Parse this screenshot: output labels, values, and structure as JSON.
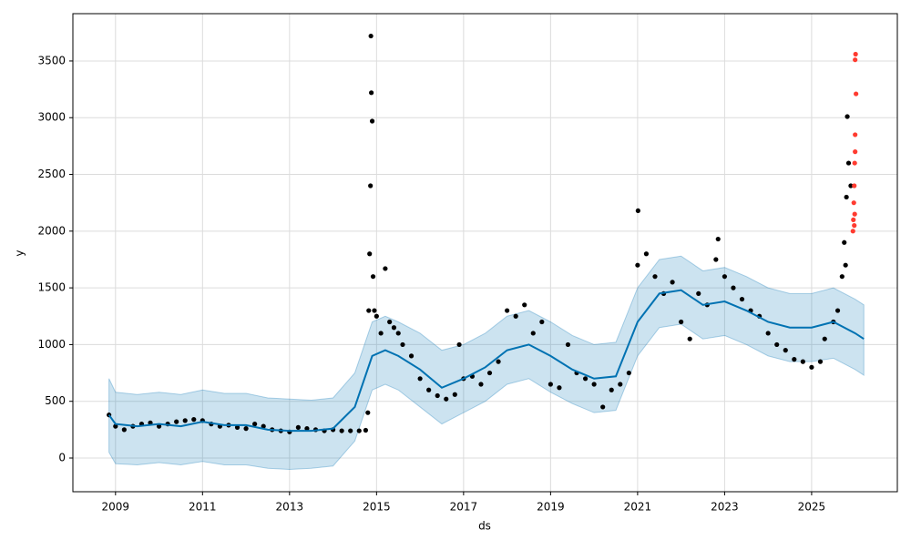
{
  "chart_data": {
    "type": "scatter",
    "xlabel": "ds",
    "ylabel": "y",
    "xlim": [
      2008.02,
      2026.97
    ],
    "ylim": [
      -297,
      3917
    ],
    "xticks": [
      2009,
      2011,
      2013,
      2015,
      2017,
      2019,
      2021,
      2023,
      2025
    ],
    "yticks": [
      0,
      500,
      1000,
      1500,
      2000,
      2500,
      3000,
      3500
    ],
    "grid": true,
    "forecast": {
      "color": "#0072B2",
      "x": [
        2008.85,
        2009.0,
        2009.5,
        2010.0,
        2010.5,
        2011.0,
        2011.5,
        2012.0,
        2012.5,
        2013.0,
        2013.5,
        2014.0,
        2014.5,
        2014.9,
        2015.2,
        2015.5,
        2016.0,
        2016.5,
        2017.0,
        2017.5,
        2018.0,
        2018.5,
        2019.0,
        2019.5,
        2020.0,
        2020.5,
        2021.0,
        2021.5,
        2022.0,
        2022.5,
        2023.0,
        2023.5,
        2024.0,
        2024.5,
        2025.0,
        2025.5,
        2026.0,
        2026.2
      ],
      "values": [
        380,
        300,
        280,
        300,
        280,
        320,
        290,
        290,
        250,
        240,
        240,
        260,
        450,
        900,
        950,
        900,
        780,
        620,
        700,
        800,
        950,
        1000,
        900,
        780,
        700,
        720,
        1200,
        1450,
        1480,
        1350,
        1380,
        1300,
        1200,
        1150,
        1150,
        1200,
        1100,
        1050
      ],
      "lower": [
        50,
        -50,
        -60,
        -40,
        -60,
        -30,
        -60,
        -60,
        -90,
        -100,
        -90,
        -70,
        150,
        600,
        650,
        600,
        450,
        300,
        400,
        500,
        650,
        700,
        580,
        480,
        400,
        420,
        900,
        1150,
        1180,
        1050,
        1080,
        1000,
        900,
        850,
        850,
        880,
        780,
        730
      ],
      "upper": [
        700,
        580,
        560,
        580,
        560,
        600,
        570,
        570,
        530,
        520,
        510,
        530,
        750,
        1200,
        1250,
        1200,
        1100,
        950,
        1000,
        1100,
        1250,
        1300,
        1200,
        1080,
        1000,
        1020,
        1500,
        1750,
        1780,
        1650,
        1680,
        1600,
        1500,
        1450,
        1450,
        1500,
        1400,
        1350
      ]
    },
    "series": [
      {
        "color": "#000000",
        "x": [
          2008.85,
          2009.0,
          2009.2,
          2009.4,
          2009.6,
          2009.8,
          2010.0,
          2010.2,
          2010.4,
          2010.6,
          2010.8,
          2011.0,
          2011.2,
          2011.4,
          2011.6,
          2011.8,
          2012.0,
          2012.2,
          2012.4,
          2012.6,
          2012.8,
          2013.0,
          2013.2,
          2013.4,
          2013.6,
          2013.8,
          2014.0,
          2014.2,
          2014.4,
          2014.6,
          2014.75,
          2014.8,
          2014.82,
          2014.84,
          2014.86,
          2014.87,
          2014.88,
          2014.9,
          2014.92,
          2014.95,
          2015.0,
          2015.1,
          2015.2,
          2015.3,
          2015.4,
          2015.5,
          2015.6,
          2015.8,
          2016.0,
          2016.2,
          2016.4,
          2016.6,
          2016.8,
          2016.9,
          2017.0,
          2017.2,
          2017.4,
          2017.6,
          2017.8,
          2018.0,
          2018.2,
          2018.4,
          2018.6,
          2018.8,
          2019.0,
          2019.2,
          2019.4,
          2019.6,
          2019.8,
          2020.0,
          2020.2,
          2020.4,
          2020.6,
          2020.8,
          2021.0,
          2021.01,
          2021.2,
          2021.4,
          2021.6,
          2021.8,
          2022.0,
          2022.2,
          2022.4,
          2022.6,
          2022.8,
          2022.85,
          2023.0,
          2023.2,
          2023.4,
          2023.6,
          2023.8,
          2024.0,
          2024.2,
          2024.4,
          2024.6,
          2024.8,
          2025.0,
          2025.2,
          2025.3,
          2025.5,
          2025.6,
          2025.7,
          2025.75,
          2025.78,
          2025.8,
          2025.82,
          2025.85,
          2025.9
        ],
        "values": [
          380,
          280,
          250,
          280,
          300,
          310,
          280,
          300,
          320,
          330,
          340,
          330,
          300,
          280,
          290,
          270,
          260,
          300,
          280,
          250,
          240,
          230,
          270,
          260,
          250,
          240,
          250,
          240,
          240,
          240,
          245,
          400,
          1300,
          1800,
          2400,
          3720,
          3220,
          2970,
          1600,
          1300,
          1250,
          1100,
          1670,
          1200,
          1150,
          1100,
          1000,
          900,
          700,
          600,
          550,
          520,
          560,
          1000,
          700,
          720,
          650,
          750,
          850,
          1300,
          1250,
          1350,
          1100,
          1200,
          650,
          620,
          1000,
          750,
          700,
          650,
          450,
          600,
          650,
          750,
          1700,
          2180,
          1800,
          1600,
          1450,
          1550,
          1200,
          1050,
          1450,
          1350,
          1750,
          1930,
          1600,
          1500,
          1400,
          1300,
          1250,
          1100,
          1000,
          950,
          870,
          850,
          800,
          850,
          1050,
          1200,
          1300,
          1600,
          1900,
          1700,
          2300,
          3010,
          2600,
          2400
        ]
      },
      {
        "color": "#ff3b30",
        "x": [
          2025.95,
          2025.96,
          2025.97,
          2025.98,
          2025.99,
          2026.0,
          2026.0,
          2026.02,
          2026.0,
          2026.01,
          2025.98,
          2025.99
        ],
        "values": [
          2000,
          2100,
          2250,
          2400,
          2600,
          2700,
          2850,
          3210,
          3510,
          3560,
          2050,
          2150
        ]
      }
    ]
  }
}
